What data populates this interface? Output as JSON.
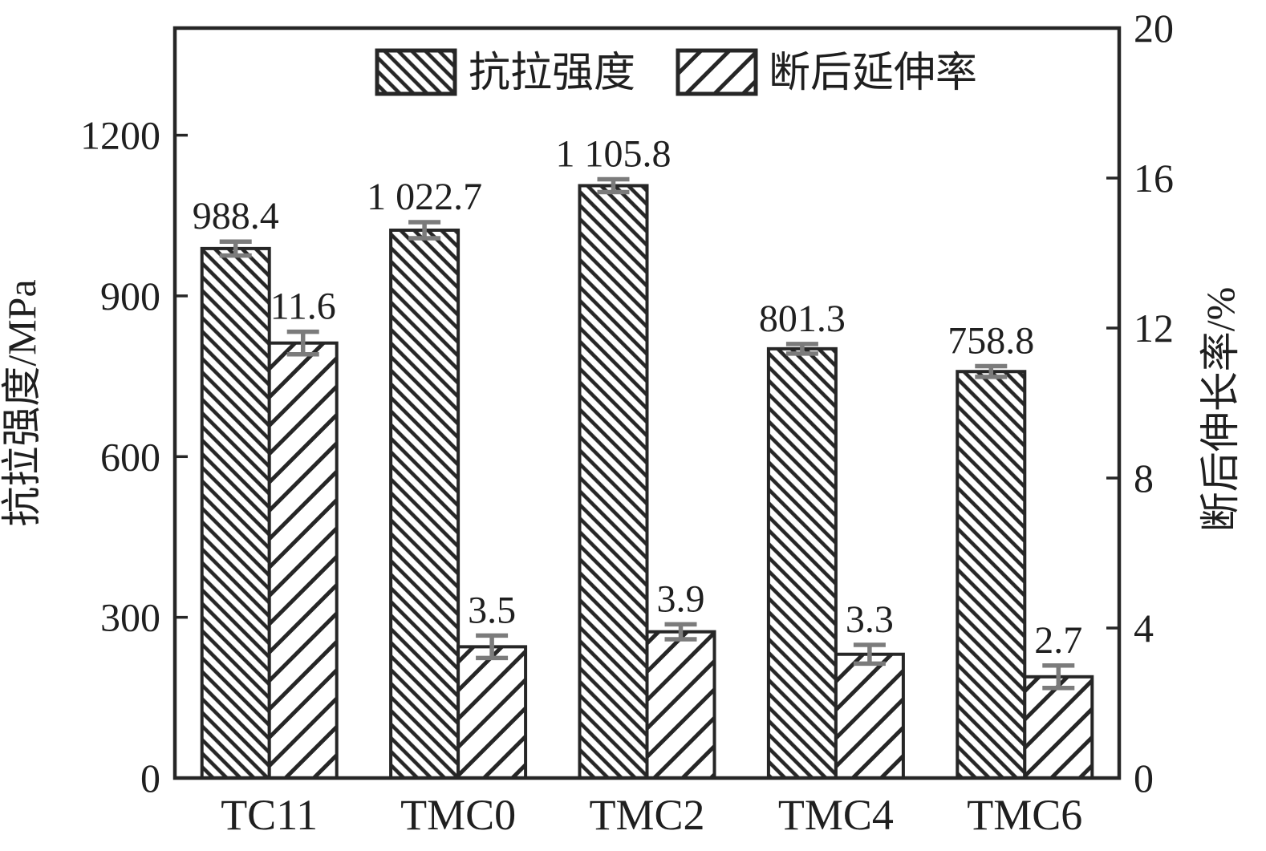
{
  "figure": {
    "background": "#ffffff",
    "ink": "#262626",
    "text_color": "#1f1f1f",
    "error_bar_color": "#7b7b7b"
  },
  "chart_data": {
    "type": "bar",
    "title": "",
    "categories": [
      "TC11",
      "TMC0",
      "TMC2",
      "TMC4",
      "TMC6"
    ],
    "series": [
      {
        "name": "抗拉强度",
        "axis": "left",
        "unit": "MPa",
        "values": [
          988.4,
          1022.7,
          1105.8,
          801.3,
          758.8
        ],
        "labels": [
          "988.4",
          "1 022.7",
          "1 105.8",
          "801.3",
          "758.8"
        ],
        "errors": [
          13,
          15,
          12,
          9,
          10
        ],
        "hatch": "backslash-dense"
      },
      {
        "name": "断后延伸率",
        "axis": "right",
        "unit": "%",
        "values": [
          11.6,
          3.5,
          3.9,
          3.3,
          2.7
        ],
        "labels": [
          "11.6",
          "3.5",
          "3.9",
          "3.3",
          "2.7"
        ],
        "errors": [
          0.3,
          0.3,
          0.2,
          0.25,
          0.3
        ],
        "hatch": "slash-sparse"
      }
    ],
    "left_axis": {
      "label": "抗拉强度/MPa",
      "min": 0,
      "max": 1400,
      "ticks": [
        0,
        300,
        600,
        900,
        1200
      ]
    },
    "right_axis": {
      "label": "断后伸长率/%",
      "min": 0,
      "max": 20,
      "ticks": [
        0,
        4,
        8,
        12,
        16,
        20
      ]
    },
    "legend": {
      "position": "top-center",
      "entries": [
        "抗拉强度",
        "断后延伸率"
      ]
    },
    "grid": false
  }
}
